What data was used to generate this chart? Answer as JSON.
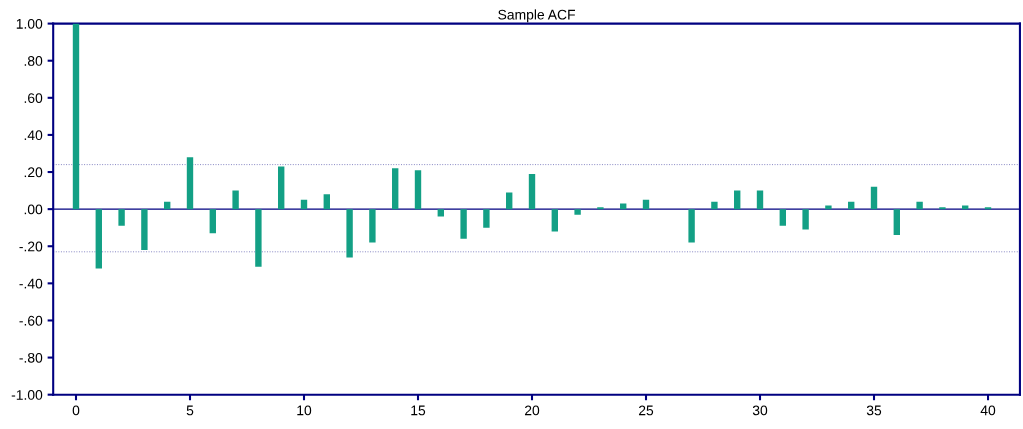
{
  "chart_data": {
    "type": "bar",
    "title": "Sample ACF",
    "x": [
      0,
      1,
      2,
      3,
      4,
      5,
      6,
      7,
      8,
      9,
      10,
      11,
      12,
      13,
      14,
      15,
      16,
      17,
      18,
      19,
      20,
      21,
      22,
      23,
      24,
      25,
      26,
      27,
      28,
      29,
      30,
      31,
      32,
      33,
      34,
      35,
      36,
      37,
      38,
      39,
      40
    ],
    "values": [
      1.0,
      -0.32,
      -0.09,
      -0.22,
      0.04,
      0.28,
      -0.13,
      0.1,
      -0.31,
      0.23,
      0.05,
      0.08,
      -0.26,
      -0.18,
      0.22,
      0.21,
      -0.04,
      -0.16,
      -0.1,
      0.09,
      0.19,
      -0.12,
      -0.03,
      0.01,
      0.03,
      0.05,
      null,
      -0.18,
      0.04,
      0.1,
      0.1,
      -0.09,
      -0.11,
      0.02,
      0.04,
      0.12,
      -0.14,
      0.04,
      0.01,
      0.02,
      0.01
    ],
    "color": "#13a085",
    "xlim": [
      -1,
      41.4
    ],
    "xticks": [
      0,
      5,
      10,
      15,
      20,
      25,
      30,
      35,
      40
    ],
    "ylim": [
      -1,
      1
    ],
    "yticks": [
      {
        "value": -1,
        "label": "-1.00"
      },
      {
        "value": -0.8,
        "label": "-.80"
      },
      {
        "value": -0.6,
        "label": "-.60"
      },
      {
        "value": -0.4,
        "label": "-.40"
      },
      {
        "value": -0.2,
        "label": "-.20"
      },
      {
        "value": 0,
        "label": ".00"
      },
      {
        "value": 0.2,
        "label": ".20"
      },
      {
        "value": 0.4,
        "label": ".40"
      },
      {
        "value": 0.6,
        "label": ".60"
      },
      {
        "value": 0.8,
        "label": ".80"
      },
      {
        "value": 1,
        "label": "1.00"
      }
    ],
    "ref_lines": [
      {
        "axis": "y",
        "value": 0.24,
        "color": "#8080c0",
        "line_style": "dotted"
      },
      {
        "axis": "y",
        "value": -0.23,
        "color": "#8080c0",
        "line_style": "dotted"
      },
      {
        "axis": "y",
        "value": 0,
        "color": "#000080",
        "line_style": "solid"
      }
    ],
    "grid": false
  }
}
